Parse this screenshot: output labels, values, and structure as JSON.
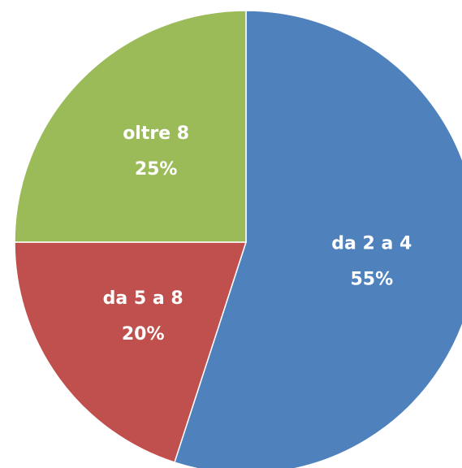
{
  "chart_data": {
    "type": "pie",
    "categories": [
      "da 2 a 4",
      "da 5 a 8",
      "oltre 8"
    ],
    "values": [
      55,
      20,
      25
    ],
    "value_labels": [
      "55%",
      "20%",
      "25%"
    ],
    "colors": [
      "#4f81bd",
      "#c0504d",
      "#9bbb59"
    ]
  }
}
